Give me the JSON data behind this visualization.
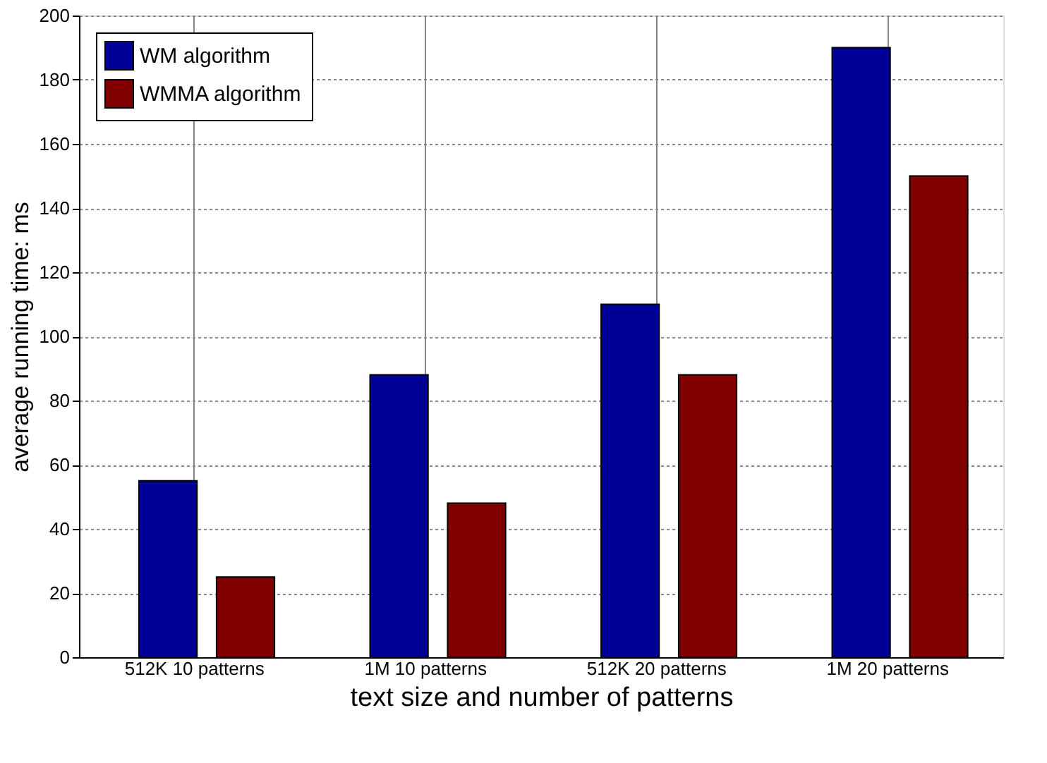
{
  "chart_data": {
    "type": "bar",
    "xlabel": "text size and number of patterns",
    "ylabel": "average running time: ms",
    "categories": [
      "512K 10 patterns",
      "1M    10 patterns",
      "512K 20 patterns",
      "1M    20 patterns"
    ],
    "series": [
      {
        "name": "WM algorithm",
        "color": "#000096",
        "values": [
          55,
          88,
          110,
          190
        ]
      },
      {
        "name": "WMMA algorithm",
        "color": "#800000",
        "values": [
          25,
          48,
          88,
          150
        ]
      }
    ],
    "ylim": [
      0,
      200
    ],
    "yticks": [
      0,
      20,
      40,
      60,
      80,
      100,
      120,
      140,
      160,
      180,
      200
    ],
    "grid": true,
    "legend": "top left"
  }
}
